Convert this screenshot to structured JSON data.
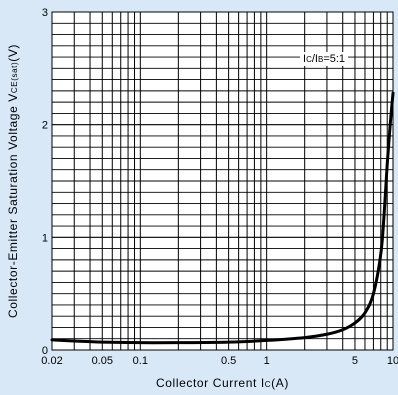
{
  "chart_data": {
    "type": "line",
    "x_scale": "log",
    "y_scale": "linear",
    "xlim": [
      0.02,
      10
    ],
    "ylim": [
      0,
      3
    ],
    "x_ticks": [
      0.02,
      0.05,
      0.1,
      0.5,
      1,
      5,
      10
    ],
    "x_tick_labels": [
      "0.02",
      "0.05",
      "0.1",
      "0.5",
      "1",
      "5",
      "10"
    ],
    "y_ticks": [
      0,
      1,
      2,
      3
    ],
    "y_tick_labels": [
      "0",
      "1",
      "2",
      "3"
    ],
    "grid": true,
    "xlabel": "Collector Current I",
    "xlabel_sub": "C",
    "xlabel_unit": "(A)",
    "ylabel": "Collector-Emitter Saturation Voltage V",
    "ylabel_sub": "CE(sat)",
    "ylabel_unit": "(V)",
    "annotation": {
      "prefix": "I",
      "sub1": "C",
      "slash": "/I",
      "sub2": "B",
      "suffix": "=5:1"
    },
    "colors": {
      "background": "#d8e8f7",
      "plot_area": "#ffffff",
      "grid": "#000000",
      "line": "#000000"
    },
    "series": [
      {
        "x": [
          0.02,
          0.03,
          0.05,
          0.1,
          0.2,
          0.5,
          1,
          2,
          3,
          4,
          5,
          6,
          7,
          8,
          8.5,
          9,
          9.5,
          10
        ],
        "y": [
          0.09,
          0.08,
          0.07,
          0.065,
          0.065,
          0.07,
          0.085,
          0.11,
          0.14,
          0.18,
          0.24,
          0.33,
          0.5,
          0.85,
          1.2,
          1.65,
          2.0,
          2.28
        ]
      }
    ]
  }
}
